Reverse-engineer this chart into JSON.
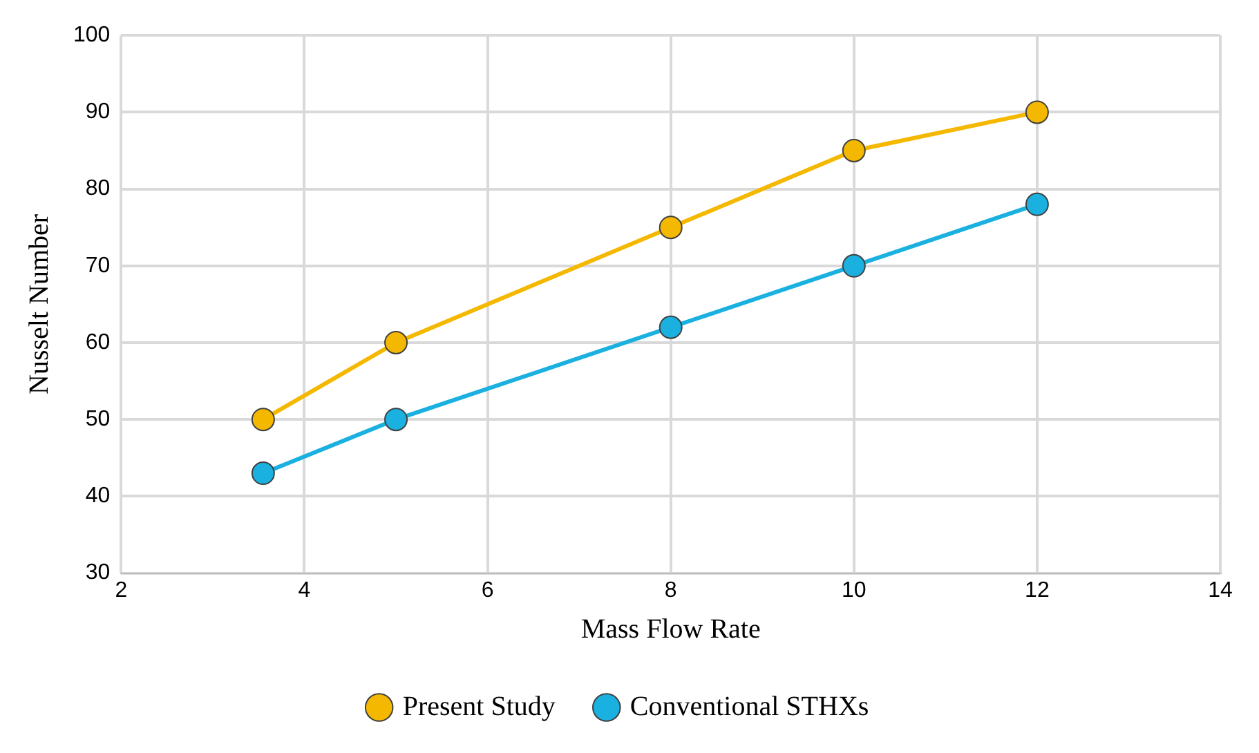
{
  "chart_data": {
    "type": "line",
    "xlabel": "Mass Flow Rate",
    "ylabel": "Nusselt Number",
    "xlim": [
      2,
      14
    ],
    "xticks": [
      2,
      4,
      6,
      8,
      10,
      12,
      14
    ],
    "ylim": [
      30,
      100
    ],
    "yticks": [
      30,
      40,
      50,
      60,
      70,
      80,
      90,
      100
    ],
    "x": [
      3.55,
      5,
      8,
      10,
      12
    ],
    "series": [
      {
        "name": "Present Study",
        "color": "#f5b800",
        "values": [
          50,
          60,
          75,
          85,
          90
        ]
      },
      {
        "name": "Conventional STHXs",
        "color": "#1ab0e0",
        "values": [
          43,
          50,
          62,
          70,
          78
        ]
      }
    ],
    "grid": true,
    "legend": "bottom",
    "marker": "circle",
    "line_style": "solid"
  }
}
